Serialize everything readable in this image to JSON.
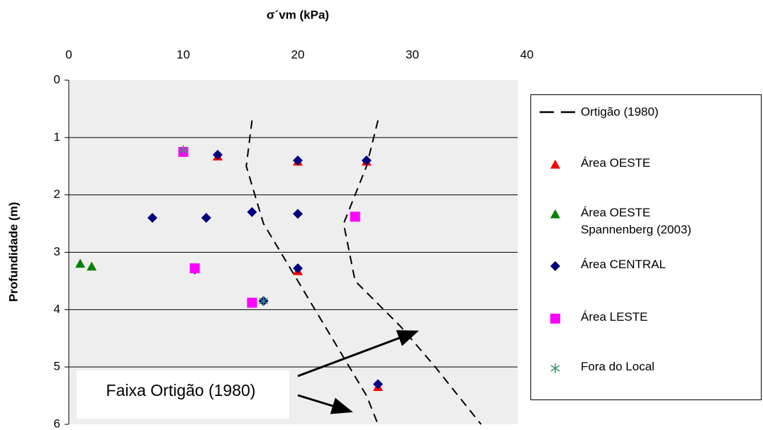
{
  "chart_data": {
    "type": "scatter",
    "title": "σ´vm (kPa)",
    "y_label": "Profundidade (m)",
    "annotation": "Faixa Ortigão (1980)",
    "xlim": [
      0,
      40
    ],
    "xticks": [
      0,
      10,
      20,
      30,
      40
    ],
    "ylim": [
      0,
      6
    ],
    "yticks": [
      0,
      1,
      2,
      3,
      4,
      5,
      6
    ],
    "y_inverted": true,
    "x_axis_top": true,
    "grid": true,
    "series": [
      {
        "name": "Ortigão (1980)",
        "color": "#000000",
        "marker": "dash-line",
        "x": [
          16,
          15.5,
          17,
          20,
          23,
          26,
          27,
          null,
          27,
          26,
          24,
          25,
          29,
          32,
          36
        ],
        "values": [
          0.7,
          1.5,
          2.5,
          3.5,
          4.5,
          5.5,
          6,
          null,
          0.7,
          1.5,
          2.5,
          3.5,
          4.3,
          5,
          6
        ]
      },
      {
        "name": "Área OESTE",
        "color": "#ff0000",
        "marker": "triangle",
        "x": [
          13,
          20,
          26,
          20,
          27
        ],
        "values": [
          1.33,
          1.42,
          1.42,
          3.33,
          5.35
        ]
      },
      {
        "name": "Área OESTE\nSpannenberg (2003)",
        "color": "#008000",
        "marker": "triangle",
        "x": [
          1,
          2
        ],
        "values": [
          3.2,
          3.25
        ]
      },
      {
        "name": "Área CENTRAL",
        "color": "#000080",
        "marker": "diamond",
        "x": [
          10,
          13,
          20,
          26,
          7.3,
          12,
          16,
          20,
          11,
          20,
          16,
          17,
          27
        ],
        "values": [
          1.25,
          1.3,
          1.4,
          1.4,
          2.4,
          2.4,
          2.3,
          2.33,
          3.3,
          3.28,
          3.88,
          3.85,
          5.3
        ]
      },
      {
        "name": "Área LESTE",
        "color": "#ff00ff",
        "marker": "square",
        "x": [
          10,
          25,
          11,
          16
        ],
        "values": [
          1.25,
          2.38,
          3.28,
          3.88
        ]
      },
      {
        "name": "Fora do Local",
        "color": "#339966",
        "marker": "asterisk",
        "x": [
          10,
          17
        ],
        "values": [
          1.22,
          3.85
        ]
      }
    ]
  }
}
